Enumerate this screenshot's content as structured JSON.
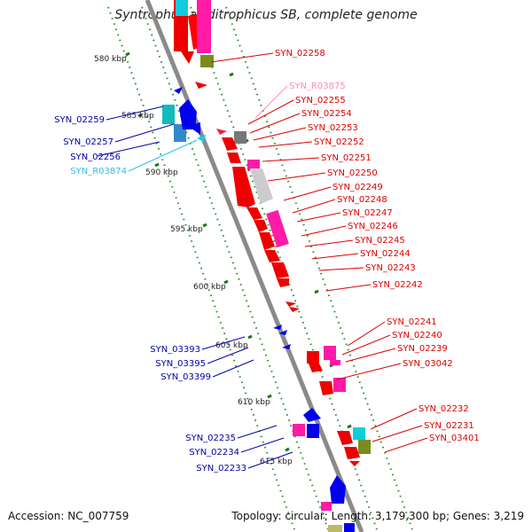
{
  "title": "Syntrophus aciditrophicus SB, complete genome",
  "accession_text": "Accession: NC_007759",
  "summary_text": "Topology: circular; Length: 3,179,300 bp; Genes: 3,219",
  "colors": {
    "backbone": "#8a8a8a",
    "dots": "#2e8b2e",
    "right_label": "#dd0000",
    "left_label": "#0000aa",
    "rna_right_label": "#ff88bb",
    "rna_left_label": "#33bbee"
  },
  "scale_labels": [
    "580 kbp",
    "585 kbp",
    "590 kbp",
    "595 kbp",
    "600 kbp",
    "605 kbp",
    "610 kbp",
    "615 kbp"
  ],
  "right_genes": [
    "SYN_02258",
    "SYN_R03875",
    "SYN_02255",
    "SYN_02254",
    "SYN_02253",
    "SYN_02252",
    "SYN_02251",
    "SYN_02250",
    "SYN_02249",
    "SYN_02248",
    "SYN_02247",
    "SYN_02246",
    "SYN_02245",
    "SYN_02244",
    "SYN_02243",
    "SYN_02242",
    "SYN_02241",
    "SYN_02240",
    "SYN_02239",
    "SYN_03042",
    "SYN_02232",
    "SYN_02231",
    "SYN_03401"
  ],
  "left_genes": [
    "SYN_02259",
    "SYN_02257",
    "SYN_02256",
    "SYN_R03874",
    "SYN_03393",
    "SYN_03395",
    "SYN_03399",
    "SYN_02235",
    "SYN_02234",
    "SYN_02233"
  ]
}
